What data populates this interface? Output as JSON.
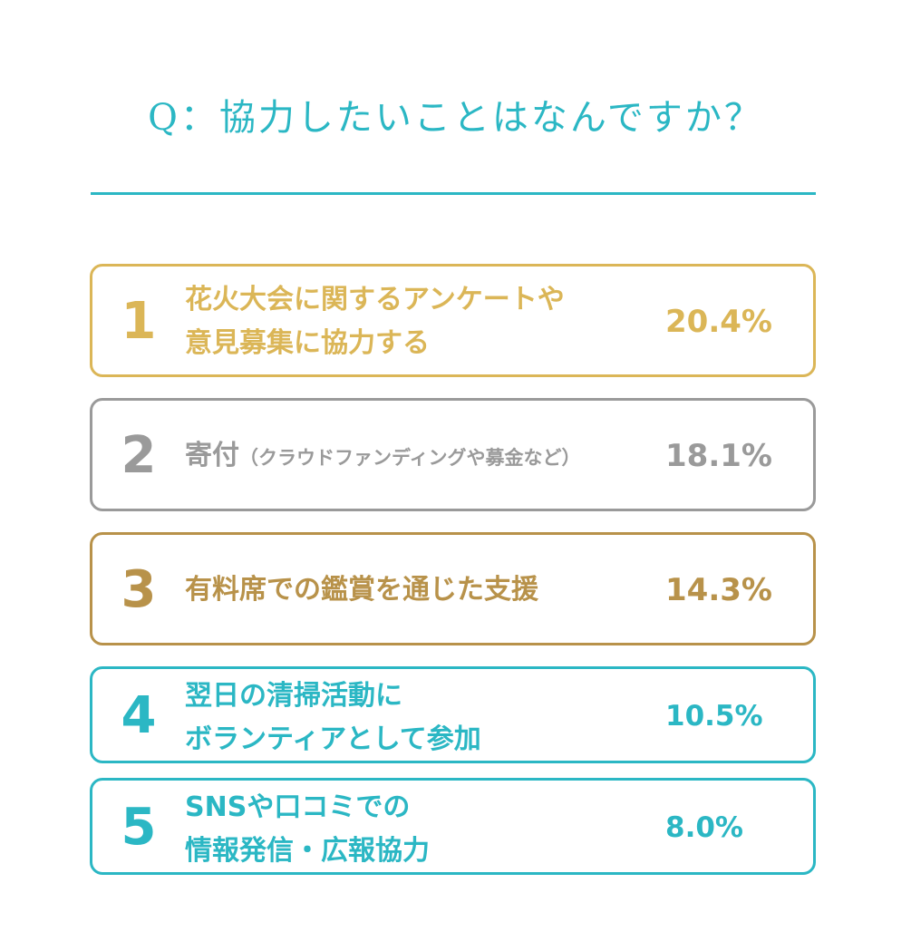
{
  "title": "Q：協力したいことはなんですか？",
  "colors": {
    "teal": "#2bb7c4",
    "gold": "#dbb657",
    "silver": "#9a9a9a",
    "bronze": "#b8924a"
  },
  "items": [
    {
      "rank": "1",
      "label_line1": "花火大会に関するアンケートや",
      "label_line2": "意見募集に協力する",
      "percent": "20.4%"
    },
    {
      "rank": "2",
      "label_main": "寄付",
      "label_note": "（クラウドファンディングや募金など）",
      "percent": "18.1%"
    },
    {
      "rank": "3",
      "label_line1": "有料席での鑑賞を通じた支援",
      "percent": "14.3%"
    },
    {
      "rank": "4",
      "label_line1": "翌日の清掃活動に",
      "label_line2": "ボランティアとして参加",
      "percent": "10.5%"
    },
    {
      "rank": "5",
      "label_line1": "SNSや口コミでの",
      "label_line2": "情報発信・広報協力",
      "percent": "8.0%"
    }
  ]
}
